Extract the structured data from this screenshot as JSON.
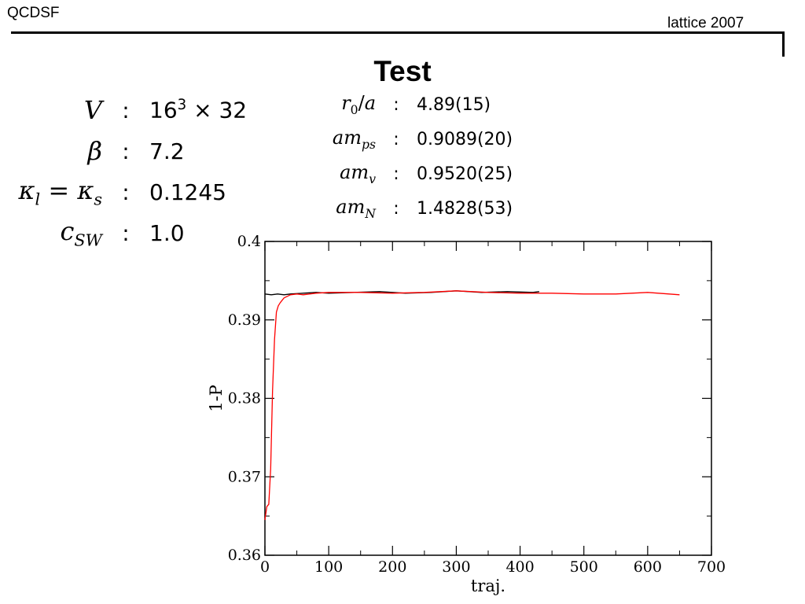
{
  "header": {
    "left": "QCDSF",
    "right": "lattice 2007"
  },
  "title": "Test",
  "params_left": [
    {
      "symbol_html": "V",
      "value_html": "16<sup>3</sup> × 32"
    },
    {
      "symbol_html": "β",
      "value_html": "7.2"
    },
    {
      "symbol_html": "κ<sub>l</sub> <span class=\"upright\">=</span> κ<sub>s</sub>",
      "value_html": "0.1245"
    },
    {
      "symbol_html": "c<sub>SW</sub>",
      "value_html": "1.0"
    }
  ],
  "params_right": [
    {
      "symbol_html": "r<sub class=\"upright\">0</sub><span class=\"upright\">/</span>a",
      "value_html": "4.89(15)"
    },
    {
      "symbol_html": "am<sub>ps</sub>",
      "value_html": "0.9089(20)"
    },
    {
      "symbol_html": "am<sub>v</sub>",
      "value_html": "0.9520(25)"
    },
    {
      "symbol_html": "am<sub>N</sub>",
      "value_html": "1.4828(53)"
    }
  ],
  "separator": ":",
  "chart_data": {
    "type": "line",
    "title": "",
    "xlabel": "traj.",
    "ylabel": "1-P",
    "xlim": [
      0,
      700
    ],
    "ylim": [
      0.36,
      0.4
    ],
    "x_ticks": [
      0,
      100,
      200,
      300,
      400,
      500,
      600,
      700
    ],
    "y_ticks": [
      0.36,
      0.37,
      0.38,
      0.39,
      0.4
    ],
    "y_tick_labels": [
      "0.36",
      "0.37",
      "0.38",
      "0.39",
      "0.4"
    ],
    "grid": false,
    "series": [
      {
        "color": "#000000",
        "x": [
          0,
          10,
          20,
          30,
          40,
          60,
          80,
          100,
          140,
          180,
          220,
          260,
          300,
          340,
          380,
          420,
          430
        ],
        "y": [
          0.3933,
          0.3932,
          0.3933,
          0.3932,
          0.3933,
          0.3934,
          0.3935,
          0.3934,
          0.3935,
          0.3936,
          0.3934,
          0.3935,
          0.3937,
          0.3935,
          0.3936,
          0.3935,
          0.3936
        ]
      },
      {
        "color": "#ff0000",
        "x": [
          0,
          3,
          6,
          9,
          12,
          15,
          18,
          21,
          24,
          27,
          30,
          35,
          40,
          50,
          60,
          80,
          100,
          150,
          200,
          250,
          300,
          350,
          400,
          450,
          500,
          550,
          600,
          650
        ],
        "y": [
          0.3645,
          0.3662,
          0.3665,
          0.371,
          0.381,
          0.3875,
          0.391,
          0.3918,
          0.3922,
          0.3925,
          0.3928,
          0.393,
          0.3932,
          0.3933,
          0.3932,
          0.3934,
          0.3935,
          0.3935,
          0.3934,
          0.3935,
          0.3937,
          0.3935,
          0.3934,
          0.3934,
          0.3933,
          0.3933,
          0.3935,
          0.3932
        ]
      }
    ]
  }
}
